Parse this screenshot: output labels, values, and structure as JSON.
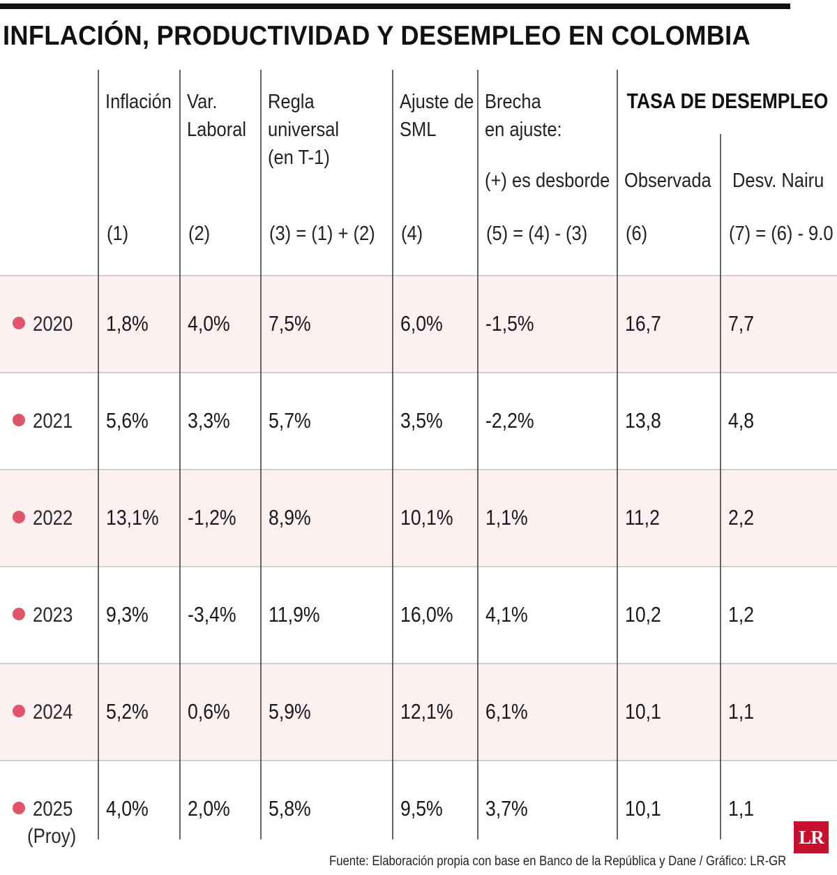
{
  "title": "INFLACIÓN, PRODUCTIVIDAD Y DESEMPLEO EN COLOMBIA",
  "source": "Fuente: Elaboración propia con base en Banco de la República y Dane / Gráfico: LR-GR",
  "logo_text": "LR",
  "colors": {
    "stripe": "#fdf0f1",
    "dot": "#e0556a",
    "grid": "#cfcfcf",
    "logo": "#c8102e"
  },
  "chart_data": {
    "type": "table",
    "group_header": "TASA DE DESEMPLEO",
    "columns": [
      {
        "label": [
          "Inflación"
        ],
        "sub": "",
        "formula": "(1)"
      },
      {
        "label": [
          "Var.",
          "Laboral"
        ],
        "sub": "",
        "formula": "(2)"
      },
      {
        "label": [
          "Regla",
          "universal",
          "(en T-1)"
        ],
        "sub": "",
        "formula": "(3) = (1) + (2)"
      },
      {
        "label": [
          "Ajuste de",
          "SML"
        ],
        "sub": "",
        "formula": "(4)"
      },
      {
        "label": [
          "Brecha",
          "en ajuste:"
        ],
        "sub": "(+) es desborde",
        "formula": "(5) = (4) - (3)"
      },
      {
        "label": [],
        "sub": "Observada",
        "formula": "(6)"
      },
      {
        "label": [],
        "sub": "Desv. Nairu",
        "formula": "(7) = (6) - 9.0"
      }
    ],
    "rows": [
      {
        "year": [
          "2020"
        ],
        "values": [
          "1,8%",
          "4,0%",
          "7,5%",
          "6,0%",
          "-1,5%",
          "16,7",
          "7,7"
        ]
      },
      {
        "year": [
          "2021"
        ],
        "values": [
          "5,6%",
          "3,3%",
          "5,7%",
          "3,5%",
          "-2,2%",
          "13,8",
          "4,8"
        ]
      },
      {
        "year": [
          "2022"
        ],
        "values": [
          "13,1%",
          "-1,2%",
          "8,9%",
          "10,1%",
          "1,1%",
          "11,2",
          "2,2"
        ]
      },
      {
        "year": [
          "2023"
        ],
        "values": [
          "9,3%",
          "-3,4%",
          "11,9%",
          "16,0%",
          "4,1%",
          "10,2",
          "1,2"
        ]
      },
      {
        "year": [
          "2024"
        ],
        "values": [
          "5,2%",
          "0,6%",
          "5,9%",
          "12,1%",
          "6,1%",
          "10,1",
          "1,1"
        ]
      },
      {
        "year": [
          "2025",
          "(Proy)"
        ],
        "values": [
          "4,0%",
          "2,0%",
          "5,8%",
          "9,5%",
          "3,7%",
          "10,1",
          "1,1"
        ]
      }
    ]
  }
}
